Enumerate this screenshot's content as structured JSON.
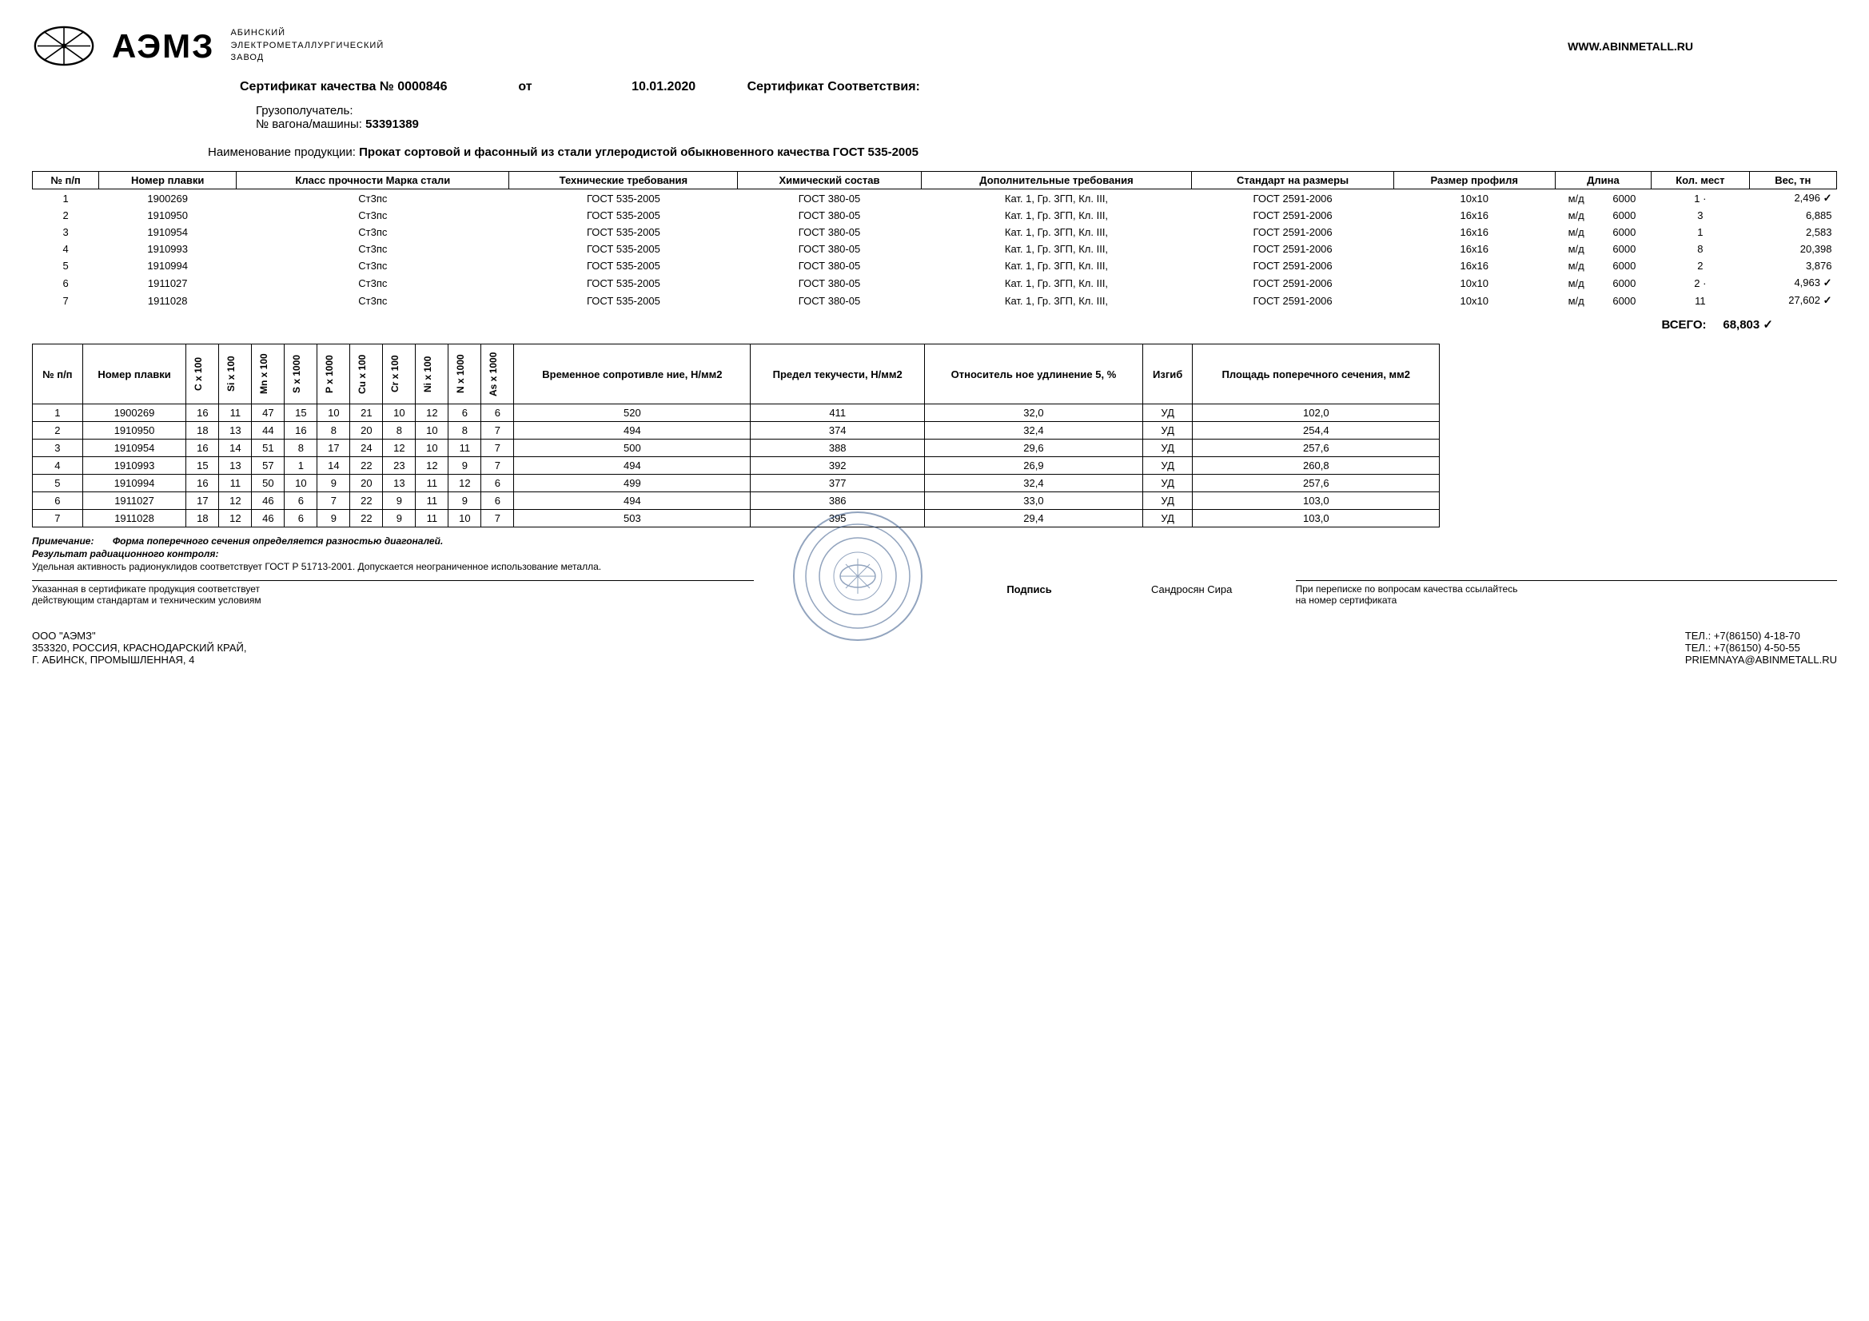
{
  "header": {
    "company_name": "АЭМЗ",
    "company_sub1": "АБИНСКИЙ",
    "company_sub2": "ЭЛЕКТРОМЕТАЛЛУРГИЧЕСКИЙ",
    "company_sub3": "ЗАВОД",
    "website": "WWW.ABINMETALL.RU"
  },
  "cert": {
    "title_label": "Сертификат качества №",
    "number": "0000846",
    "from_label": "от",
    "date": "10.01.2020",
    "conformity_label": "Сертификат Соответствия:"
  },
  "info": {
    "consignee_label": "Грузополучатель:",
    "wagon_label": "№ вагона/машины:",
    "wagon_value": "53391389"
  },
  "product": {
    "label": "Наименование продукции:",
    "value": "Прокат сортовой и фасонный из стали углеродистой обыкновенного качества ГОСТ 535-2005"
  },
  "table1": {
    "headers": [
      "№ п/п",
      "Номер плавки",
      "Класс прочности Марка стали",
      "Технические требования",
      "Химический состав",
      "Дополнительные требования",
      "Стандарт на размеры",
      "Размер профиля",
      "Длина",
      "",
      "Кол. мест",
      "Вес, тн"
    ],
    "rows": [
      [
        "1",
        "1900269",
        "Ст3пс",
        "ГОСТ 535-2005",
        "ГОСТ 380-05",
        "Кат. 1, Гр. 3ГП, Кл. III,",
        "ГОСТ 2591-2006",
        "10x10",
        "м/д",
        "6000",
        "1 ·",
        "2,496"
      ],
      [
        "2",
        "1910950",
        "Ст3пс",
        "ГОСТ 535-2005",
        "ГОСТ 380-05",
        "Кат. 1, Гр. 3ГП, Кл. III,",
        "ГОСТ 2591-2006",
        "16x16",
        "м/д",
        "6000",
        "3",
        "6,885"
      ],
      [
        "3",
        "1910954",
        "Ст3пс",
        "ГОСТ 535-2005",
        "ГОСТ 380-05",
        "Кат. 1, Гр. 3ГП, Кл. III,",
        "ГОСТ 2591-2006",
        "16x16",
        "м/д",
        "6000",
        "1",
        "2,583"
      ],
      [
        "4",
        "1910993",
        "Ст3пс",
        "ГОСТ 535-2005",
        "ГОСТ 380-05",
        "Кат. 1, Гр. 3ГП, Кл. III,",
        "ГОСТ 2591-2006",
        "16x16",
        "м/д",
        "6000",
        "8",
        "20,398"
      ],
      [
        "5",
        "1910994",
        "Ст3пс",
        "ГОСТ 535-2005",
        "ГОСТ 380-05",
        "Кат. 1, Гр. 3ГП, Кл. III,",
        "ГОСТ 2591-2006",
        "16x16",
        "м/д",
        "6000",
        "2",
        "3,876"
      ],
      [
        "6",
        "1911027",
        "Ст3пс",
        "ГОСТ 535-2005",
        "ГОСТ 380-05",
        "Кат. 1, Гр. 3ГП, Кл. III,",
        "ГОСТ 2591-2006",
        "10x10",
        "м/д",
        "6000",
        "2 ·",
        "4,963"
      ],
      [
        "7",
        "1911028",
        "Ст3пс",
        "ГОСТ 535-2005",
        "ГОСТ 380-05",
        "Кат. 1, Гр. 3ГП, Кл. III,",
        "ГОСТ 2591-2006",
        "10x10",
        "м/д",
        "6000",
        "11",
        "27,602"
      ]
    ],
    "checks": [
      true,
      false,
      false,
      false,
      false,
      true,
      true
    ],
    "total_label": "ВСЕГО:",
    "total_value": "68,803"
  },
  "table2": {
    "headers": [
      "№ п/п",
      "Номер плавки",
      "C x 100",
      "Si x 100",
      "Mn x 100",
      "S x 1000",
      "P x 1000",
      "Cu x 100",
      "Cr x 100",
      "Ni x 100",
      "N x 1000",
      "As x 1000",
      "Временное сопротивле ние, Н/мм2",
      "Предел текучести, Н/мм2",
      "Относитель ное удлинение 5, %",
      "Изгиб",
      "Площадь поперечного сечения, мм2"
    ],
    "vert_cols": [
      2,
      3,
      4,
      5,
      6,
      7,
      8,
      9,
      10,
      11
    ],
    "rows": [
      [
        "1",
        "1900269",
        "16",
        "11",
        "47",
        "15",
        "10",
        "21",
        "10",
        "12",
        "6",
        "6",
        "520",
        "411",
        "32,0",
        "УД",
        "102,0"
      ],
      [
        "2",
        "1910950",
        "18",
        "13",
        "44",
        "16",
        "8",
        "20",
        "8",
        "10",
        "8",
        "7",
        "494",
        "374",
        "32,4",
        "УД",
        "254,4"
      ],
      [
        "3",
        "1910954",
        "16",
        "14",
        "51",
        "8",
        "17",
        "24",
        "12",
        "10",
        "11",
        "7",
        "500",
        "388",
        "29,6",
        "УД",
        "257,6"
      ],
      [
        "4",
        "1910993",
        "15",
        "13",
        "57",
        "1",
        "14",
        "22",
        "23",
        "12",
        "9",
        "7",
        "494",
        "392",
        "26,9",
        "УД",
        "260,8"
      ],
      [
        "5",
        "1910994",
        "16",
        "11",
        "50",
        "10",
        "9",
        "20",
        "13",
        "11",
        "12",
        "6",
        "499",
        "377",
        "32,4",
        "УД",
        "257,6"
      ],
      [
        "6",
        "1911027",
        "17",
        "12",
        "46",
        "6",
        "7",
        "22",
        "9",
        "11",
        "9",
        "6",
        "494",
        "386",
        "33,0",
        "УД",
        "103,0"
      ],
      [
        "7",
        "1911028",
        "18",
        "12",
        "46",
        "6",
        "9",
        "22",
        "9",
        "11",
        "10",
        "7",
        "503",
        "395",
        "29,4",
        "УД",
        "103,0"
      ]
    ]
  },
  "notes": {
    "note_label": "Примечание:",
    "note_text": "Форма поперечного сечения определяется разностью диагоналей.",
    "rad_label": "Результат радиационного контроля:",
    "rad_text": "Удельная активность радионуклидов соответствует ГОСТ Р 51713-2001. Допускается неограниченное использование металла."
  },
  "signature": {
    "left1": "Указанная в сертификате продукция соответствует",
    "left2": "действующим стандартам и техническим условиям",
    "sig_label": "Подпись",
    "sig_name": "Сандросян Сира",
    "right1": "При переписке по вопросам качества ссылайтесь",
    "right2": "на номер сертификата"
  },
  "footer": {
    "org": "ООО \"АЭМЗ\"",
    "addr1": "353320, РОССИЯ, КРАСНОДАРСКИЙ КРАЙ,",
    "addr2": "Г. АБИНСК, ПРОМЫШЛЕННАЯ, 4",
    "tel1": "ТЕЛ.: +7(86150) 4-18-70",
    "tel2": "ТЕЛ.: +7(86150) 4-50-55",
    "email": "PRIEMNAYA@ABINMETALL.RU"
  }
}
